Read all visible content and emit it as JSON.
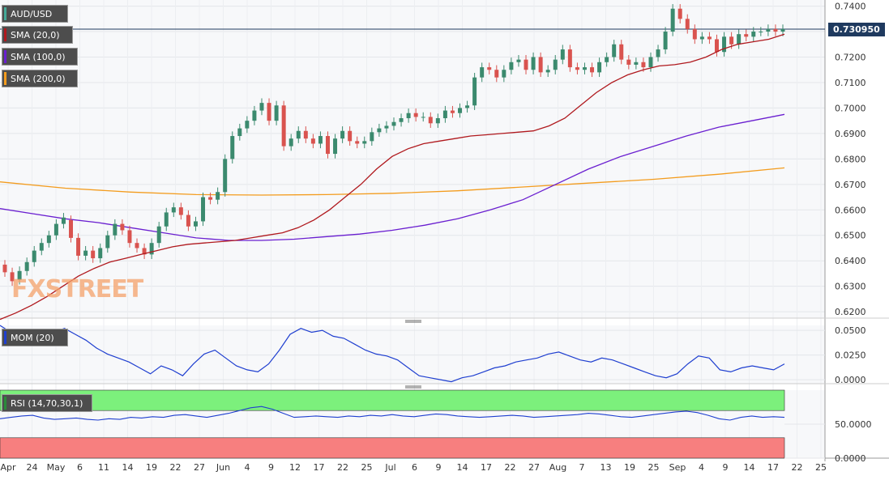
{
  "chart_data": {
    "type": "candlestick",
    "symbol": "AUD/USD",
    "last_price": "0.730950",
    "price_axis": {
      "ticks": [
        "0.7400",
        "0.7300",
        "0.7200",
        "0.7100",
        "0.7000",
        "0.6900",
        "0.6800",
        "0.6700",
        "0.6600",
        "0.6500",
        "0.6400",
        "0.6300",
        "0.6200"
      ],
      "range": [
        0.6175,
        0.7405
      ]
    },
    "x_axis_labels": [
      "Apr",
      "24",
      "May",
      "6",
      "11",
      "14",
      "19",
      "22",
      "27",
      "Jun",
      "4",
      "9",
      "12",
      "17",
      "22",
      "25",
      "Jul",
      "6",
      "9",
      "14",
      "17",
      "22",
      "27",
      "Aug",
      "7",
      "13",
      "19",
      "25",
      "Sep",
      "4",
      "9",
      "14",
      "17",
      "22",
      "25"
    ],
    "indicators": [
      {
        "name": "SMA (20,0)",
        "color": "#b0191e"
      },
      {
        "name": "SMA (100,0)",
        "color": "#6a1fd0"
      },
      {
        "name": "SMA (200,0)",
        "color": "#f39c1e"
      }
    ],
    "sma20_values": [
      0.617,
      0.6195,
      0.6225,
      0.626,
      0.63,
      0.634,
      0.637,
      0.6395,
      0.641,
      0.6425,
      0.644,
      0.6455,
      0.6465,
      0.647,
      0.6475,
      0.648,
      0.649,
      0.65,
      0.651,
      0.653,
      0.656,
      0.66,
      0.665,
      0.67,
      0.676,
      0.681,
      0.684,
      0.686,
      0.687,
      0.688,
      0.689,
      0.6895,
      0.69,
      0.6905,
      0.691,
      0.693,
      0.696,
      0.701,
      0.706,
      0.71,
      0.713,
      0.715,
      0.7165,
      0.717,
      0.718,
      0.72,
      0.723,
      0.725,
      0.726,
      0.727,
      0.729
    ],
    "sma100_values": [
      0.6605,
      0.6585,
      0.6565,
      0.655,
      0.653,
      0.651,
      0.649,
      0.648,
      0.648,
      0.6485,
      0.6495,
      0.6505,
      0.652,
      0.654,
      0.6565,
      0.66,
      0.664,
      0.67,
      0.676,
      0.681,
      0.685,
      0.689,
      0.6925,
      0.695,
      0.6975
    ],
    "sma200_values": [
      0.671,
      0.6685,
      0.667,
      0.666,
      0.6658,
      0.666,
      0.6665,
      0.6675,
      0.669,
      0.6705,
      0.672,
      0.674,
      0.6765
    ],
    "candles": [
      [
        0.6385,
        0.6355
      ],
      [
        0.6355,
        0.632
      ],
      [
        0.6325,
        0.636
      ],
      [
        0.636,
        0.6395
      ],
      [
        0.6395,
        0.644
      ],
      [
        0.644,
        0.647
      ],
      [
        0.647,
        0.65
      ],
      [
        0.65,
        0.6545
      ],
      [
        0.6545,
        0.657
      ],
      [
        0.656,
        0.649
      ],
      [
        0.649,
        0.642
      ],
      [
        0.642,
        0.644
      ],
      [
        0.644,
        0.641
      ],
      [
        0.641,
        0.645
      ],
      [
        0.645,
        0.65
      ],
      [
        0.65,
        0.6545
      ],
      [
        0.6545,
        0.652
      ],
      [
        0.652,
        0.647
      ],
      [
        0.647,
        0.645
      ],
      [
        0.645,
        0.6425
      ],
      [
        0.6425,
        0.647
      ],
      [
        0.647,
        0.6535
      ],
      [
        0.6535,
        0.659
      ],
      [
        0.659,
        0.661
      ],
      [
        0.661,
        0.658
      ],
      [
        0.658,
        0.6535
      ],
      [
        0.6535,
        0.6555
      ],
      [
        0.6555,
        0.665
      ],
      [
        0.665,
        0.664
      ],
      [
        0.664,
        0.667
      ],
      [
        0.667,
        0.68
      ],
      [
        0.68,
        0.689
      ],
      [
        0.689,
        0.692
      ],
      [
        0.692,
        0.695
      ],
      [
        0.695,
        0.699
      ],
      [
        0.699,
        0.702
      ],
      [
        0.702,
        0.695
      ],
      [
        0.695,
        0.701
      ],
      [
        0.701,
        0.685
      ],
      [
        0.685,
        0.688
      ],
      [
        0.688,
        0.691
      ],
      [
        0.691,
        0.688
      ],
      [
        0.688,
        0.686
      ],
      [
        0.686,
        0.689
      ],
      [
        0.689,
        0.682
      ],
      [
        0.682,
        0.688
      ],
      [
        0.688,
        0.691
      ],
      [
        0.691,
        0.687
      ],
      [
        0.687,
        0.686
      ],
      [
        0.686,
        0.687
      ],
      [
        0.687,
        0.6905
      ],
      [
        0.6905,
        0.692
      ],
      [
        0.692,
        0.693
      ],
      [
        0.693,
        0.6945
      ],
      [
        0.6945,
        0.696
      ],
      [
        0.696,
        0.698
      ],
      [
        0.698,
        0.6965
      ],
      [
        0.6965,
        0.6965
      ],
      [
        0.6965,
        0.694
      ],
      [
        0.694,
        0.696
      ],
      [
        0.696,
        0.699
      ],
      [
        0.699,
        0.698
      ],
      [
        0.698,
        0.7
      ],
      [
        0.7,
        0.701
      ],
      [
        0.701,
        0.712
      ],
      [
        0.712,
        0.716
      ],
      [
        0.716,
        0.715
      ],
      [
        0.715,
        0.712
      ],
      [
        0.712,
        0.715
      ],
      [
        0.715,
        0.718
      ],
      [
        0.718,
        0.719
      ],
      [
        0.719,
        0.715
      ],
      [
        0.715,
        0.72
      ],
      [
        0.72,
        0.714
      ],
      [
        0.714,
        0.715
      ],
      [
        0.715,
        0.719
      ],
      [
        0.719,
        0.723
      ],
      [
        0.723,
        0.716
      ],
      [
        0.716,
        0.715
      ],
      [
        0.715,
        0.716
      ],
      [
        0.716,
        0.714
      ],
      [
        0.714,
        0.718
      ],
      [
        0.718,
        0.72
      ],
      [
        0.72,
        0.725
      ],
      [
        0.725,
        0.719
      ],
      [
        0.719,
        0.717
      ],
      [
        0.717,
        0.718
      ],
      [
        0.718,
        0.716
      ],
      [
        0.716,
        0.72
      ],
      [
        0.72,
        0.723
      ],
      [
        0.723,
        0.73
      ],
      [
        0.73,
        0.739
      ],
      [
        0.739,
        0.735
      ],
      [
        0.735,
        0.731
      ],
      [
        0.731,
        0.727
      ],
      [
        0.727,
        0.728
      ],
      [
        0.728,
        0.727
      ],
      [
        0.727,
        0.722
      ],
      [
        0.722,
        0.728
      ],
      [
        0.728,
        0.725
      ],
      [
        0.725,
        0.729
      ],
      [
        0.729,
        0.728
      ],
      [
        0.728,
        0.73
      ],
      [
        0.73,
        0.73
      ],
      [
        0.73,
        0.731
      ],
      [
        0.731,
        0.73
      ],
      [
        0.73,
        0.731
      ]
    ],
    "momentum": {
      "name": "MOM (20)",
      "color": "#1f3fd0",
      "ticks": [
        "0.0500",
        "0.0250",
        "0.0000"
      ],
      "range": [
        -0.004,
        0.055
      ],
      "values": [
        0.055,
        0.048,
        0.044,
        0.04,
        0.042,
        0.048,
        0.052,
        0.046,
        0.04,
        0.032,
        0.026,
        0.022,
        0.018,
        0.012,
        0.006,
        0.014,
        0.01,
        0.004,
        0.016,
        0.026,
        0.03,
        0.022,
        0.014,
        0.01,
        0.008,
        0.016,
        0.03,
        0.046,
        0.052,
        0.048,
        0.05,
        0.044,
        0.042,
        0.036,
        0.03,
        0.026,
        0.024,
        0.02,
        0.012,
        0.004,
        0.002,
        0.0,
        -0.002,
        0.002,
        0.004,
        0.008,
        0.012,
        0.014,
        0.018,
        0.02,
        0.022,
        0.026,
        0.028,
        0.024,
        0.02,
        0.018,
        0.022,
        0.02,
        0.016,
        0.012,
        0.008,
        0.004,
        0.002,
        0.006,
        0.016,
        0.024,
        0.022,
        0.01,
        0.008,
        0.012,
        0.014,
        0.012,
        0.01,
        0.016
      ]
    },
    "rsi": {
      "name": "RSI (14,70,30,1)",
      "ticks": [
        "50.0000",
        "0.0000"
      ],
      "overbought": 70,
      "oversold": 30,
      "range": [
        0,
        100
      ],
      "values": [
        58,
        60,
        62,
        63,
        59,
        57,
        58,
        59,
        57,
        56,
        58,
        57,
        60,
        59,
        61,
        60,
        63,
        64,
        62,
        60,
        63,
        66,
        70,
        74,
        76,
        72,
        66,
        60,
        61,
        62,
        61,
        60,
        62,
        61,
        63,
        62,
        64,
        62,
        61,
        63,
        65,
        64,
        62,
        61,
        60,
        61,
        62,
        63,
        62,
        60,
        61,
        62,
        63,
        64,
        66,
        65,
        63,
        61,
        60,
        62,
        64,
        66,
        68,
        69,
        67,
        63,
        58,
        56,
        60,
        62,
        60,
        61,
        60
      ]
    }
  }
}
